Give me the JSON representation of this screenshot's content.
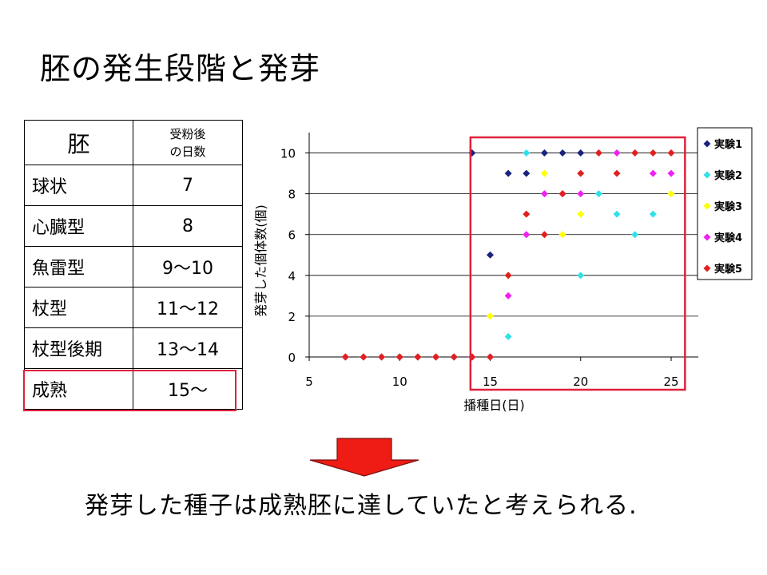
{
  "title": "胚の発生段階と発芽",
  "table": {
    "header": {
      "col1": "胚",
      "col2_line1": "受粉後",
      "col2_line2": "の日数"
    },
    "rows": [
      {
        "stage": "球状",
        "days": "7"
      },
      {
        "stage": "心臓型",
        "days": "8"
      },
      {
        "stage": "魚雷型",
        "days": "9〜10"
      },
      {
        "stage": "杖型",
        "days": "11〜12"
      },
      {
        "stage": "杖型後期",
        "days": "13〜14"
      },
      {
        "stage": "成熟",
        "days": "15〜"
      }
    ]
  },
  "conclusion": "発芽した種子は成熟胚に達していたと考えられる.",
  "colors": {
    "highlight": "#e0203a",
    "arrow_fill": "#ee1c14",
    "arrow_stroke": "#7a1010"
  },
  "chart_data": {
    "type": "scatter",
    "xlabel": "播種日(日)",
    "ylabel": "発芽した個体数(個)",
    "xlim": [
      5,
      26.5
    ],
    "ylim": [
      0,
      11
    ],
    "xticks": [
      5,
      10,
      15,
      20,
      25
    ],
    "yticks": [
      0,
      2,
      4,
      6,
      8,
      10
    ],
    "grid": "horizontal",
    "legend": "right",
    "highlight_range_x": [
      14,
      25.5
    ],
    "series": [
      {
        "name": "実験1",
        "color": "#1a237e",
        "points": [
          [
            7,
            0
          ],
          [
            8,
            0
          ],
          [
            9,
            0
          ],
          [
            10,
            0
          ],
          [
            11,
            0
          ],
          [
            12,
            0
          ],
          [
            13,
            0
          ],
          [
            14,
            10
          ],
          [
            15,
            5
          ],
          [
            16,
            9
          ],
          [
            17,
            9
          ],
          [
            18,
            10
          ],
          [
            19,
            10
          ],
          [
            20,
            10
          ]
        ]
      },
      {
        "name": "実験2",
        "color": "#33e0e8",
        "points": [
          [
            7,
            0
          ],
          [
            8,
            0
          ],
          [
            9,
            0
          ],
          [
            10,
            0
          ],
          [
            11,
            0
          ],
          [
            12,
            0
          ],
          [
            13,
            0
          ],
          [
            14,
            0
          ],
          [
            15,
            0
          ],
          [
            16,
            1
          ],
          [
            17,
            10
          ],
          [
            20,
            4
          ],
          [
            21,
            8
          ],
          [
            22,
            7
          ],
          [
            23,
            6
          ],
          [
            24,
            7
          ]
        ]
      },
      {
        "name": "実験3",
        "color": "#ffff00",
        "points": [
          [
            7,
            0
          ],
          [
            8,
            0
          ],
          [
            9,
            0
          ],
          [
            10,
            0
          ],
          [
            11,
            0
          ],
          [
            12,
            0
          ],
          [
            13,
            0
          ],
          [
            14,
            0
          ],
          [
            15,
            2
          ],
          [
            16,
            4
          ],
          [
            18,
            9
          ],
          [
            19,
            6
          ],
          [
            20,
            7
          ],
          [
            25,
            8
          ]
        ]
      },
      {
        "name": "実験4",
        "color": "#ee22ee",
        "points": [
          [
            7,
            0
          ],
          [
            8,
            0
          ],
          [
            9,
            0
          ],
          [
            10,
            0
          ],
          [
            11,
            0
          ],
          [
            12,
            0
          ],
          [
            13,
            0
          ],
          [
            14,
            0
          ],
          [
            15,
            0
          ],
          [
            16,
            3
          ],
          [
            17,
            6
          ],
          [
            18,
            8
          ],
          [
            19,
            8
          ],
          [
            20,
            8
          ],
          [
            22,
            10
          ],
          [
            24,
            9
          ],
          [
            25,
            9
          ]
        ]
      },
      {
        "name": "実験5",
        "color": "#e02020",
        "points": [
          [
            7,
            0
          ],
          [
            8,
            0
          ],
          [
            9,
            0
          ],
          [
            10,
            0
          ],
          [
            11,
            0
          ],
          [
            12,
            0
          ],
          [
            13,
            0
          ],
          [
            14,
            0
          ],
          [
            15,
            0
          ],
          [
            16,
            4
          ],
          [
            17,
            7
          ],
          [
            18,
            6
          ],
          [
            19,
            8
          ],
          [
            20,
            9
          ],
          [
            21,
            10
          ],
          [
            22,
            9
          ],
          [
            23,
            10
          ],
          [
            24,
            10
          ],
          [
            25,
            10
          ]
        ]
      }
    ]
  }
}
